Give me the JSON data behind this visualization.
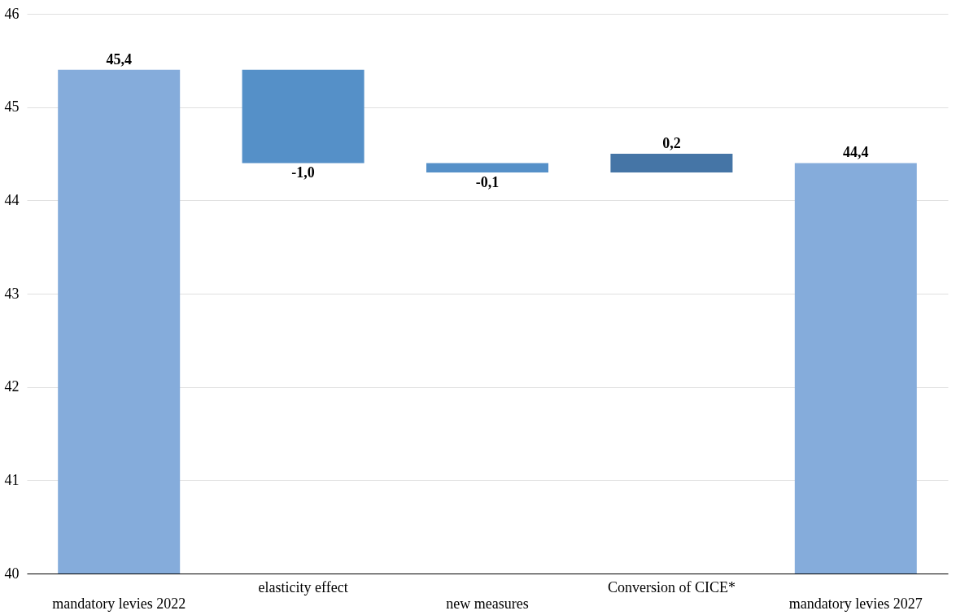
{
  "chart_data": {
    "type": "bar",
    "categories": [
      "mandatory levies 2022",
      "elasticity effect",
      "new measures",
      "Conversion of CICE*",
      "mandatory levies 2027"
    ],
    "base": [
      40,
      45.4,
      44.4,
      44.3,
      40
    ],
    "values": [
      5.4,
      -1.0,
      -0.1,
      0.2,
      4.4
    ],
    "colors": [
      "#85acdb",
      "#5590c8",
      "#5590c8",
      "#4575a6",
      "#85acdb"
    ],
    "value_labels": [
      "45,4",
      "-1,0",
      "-0,1",
      "0,2",
      "44,4"
    ],
    "ylim": [
      40,
      46
    ],
    "yticks": [
      40,
      41,
      42,
      43,
      44,
      45,
      46
    ],
    "grid": "y"
  }
}
